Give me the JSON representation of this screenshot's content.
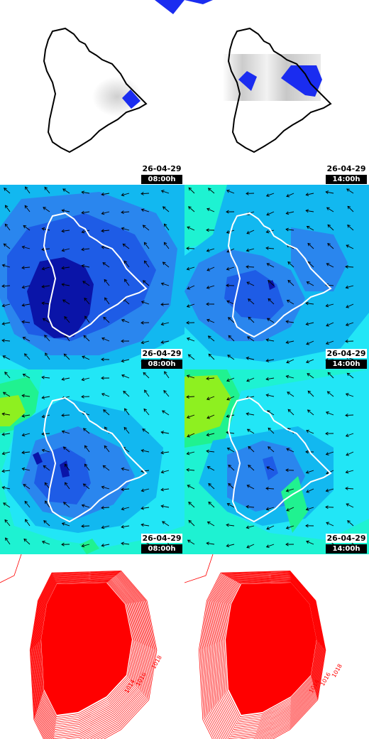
{
  "panels": [
    {
      "row": "precipitation",
      "col": "left",
      "date": "26-04-29",
      "time": "08:00h"
    },
    {
      "row": "precipitation",
      "col": "right",
      "date": "26-04-29",
      "time": "14:00h"
    },
    {
      "row": "wind-surface",
      "col": "left",
      "date": "26-04-29",
      "time": "08:00h"
    },
    {
      "row": "wind-surface",
      "col": "right",
      "date": "26-04-29",
      "time": "14:00h"
    },
    {
      "row": "wind-upper",
      "col": "left",
      "date": "26-04-29",
      "time": "08:00h"
    },
    {
      "row": "wind-upper",
      "col": "right",
      "date": "26-04-29",
      "time": "14:00h"
    },
    {
      "row": "pressure",
      "col": "left",
      "date": "",
      "time": ""
    },
    {
      "row": "pressure",
      "col": "right",
      "date": "",
      "time": ""
    }
  ],
  "isobar_labels": {
    "left": [
      "1014",
      "1016",
      "1018"
    ],
    "right": [
      "1014",
      "1016",
      "1018"
    ]
  },
  "colors": {
    "precip_blue": "#1a2cf0",
    "wind_deep": "#0a14a8",
    "wind_blue": "#1e5ce6",
    "wind_mid": "#2a86ee",
    "wind_light": "#12b8f0",
    "wind_cyan": "#22e6f6",
    "wind_aqua": "#1ef2d2",
    "wind_green": "#20f290",
    "wind_lime": "#8ef020",
    "isobar_red": "#ff0000",
    "coast_dark": "#000000",
    "coast_light": "#ffffff"
  },
  "icons": {
    "wind_arrow": "arrow-icon",
    "island": "island-outline-icon"
  }
}
